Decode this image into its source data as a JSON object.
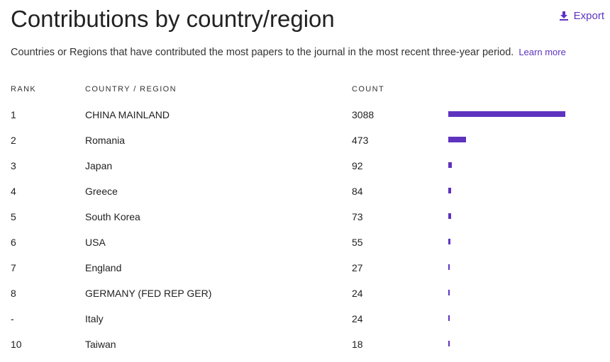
{
  "header": {
    "title": "Contributions by country/region",
    "export_label": "Export",
    "subtitle": "Countries or Regions that have contributed the most papers to the journal in the most recent three-year period.",
    "learn_more": "Learn more"
  },
  "table": {
    "columns": {
      "rank": "RANK",
      "country": "COUNTRY / REGION",
      "count": "COUNT"
    },
    "rows": [
      {
        "rank": "1",
        "country": "CHINA MAINLAND",
        "count": "3088",
        "value": 3088
      },
      {
        "rank": "2",
        "country": "Romania",
        "count": "473",
        "value": 473
      },
      {
        "rank": "3",
        "country": "Japan",
        "count": "92",
        "value": 92
      },
      {
        "rank": "4",
        "country": "Greece",
        "count": "84",
        "value": 84
      },
      {
        "rank": "5",
        "country": "South Korea",
        "count": "73",
        "value": 73
      },
      {
        "rank": "6",
        "country": "USA",
        "count": "55",
        "value": 55
      },
      {
        "rank": "7",
        "country": "England",
        "count": "27",
        "value": 27
      },
      {
        "rank": "8",
        "country": "GERMANY (FED REP GER)",
        "count": "24",
        "value": 24
      },
      {
        "rank": "-",
        "country": "Italy",
        "count": "24",
        "value": 24
      },
      {
        "rank": "10",
        "country": "Taiwan",
        "count": "18",
        "value": 18
      }
    ]
  },
  "colors": {
    "accent": "#5e33bf",
    "text": "#222222"
  },
  "icons": {
    "export": "download-icon"
  }
}
